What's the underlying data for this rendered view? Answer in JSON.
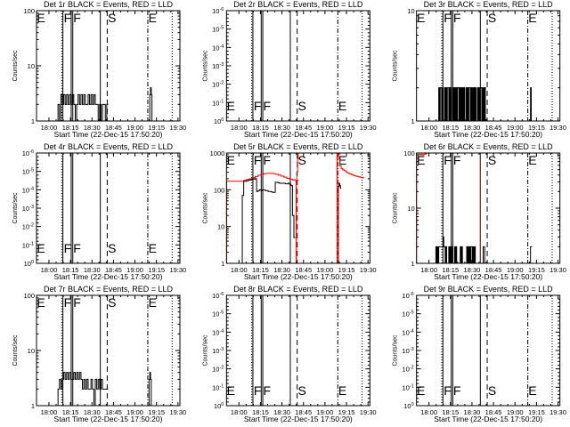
{
  "chart_data": {
    "type": "line",
    "layout": "3x3 grid",
    "x_axis": {
      "label": "Start Time (22-Dec-15 17:50:20)",
      "unit": "minutes since 17:50:20",
      "range": [
        1,
        101
      ],
      "ticks": [
        {
          "t": 9.67,
          "label": "18:00"
        },
        {
          "t": 24.67,
          "label": "18:15"
        },
        {
          "t": 39.67,
          "label": "18:30"
        },
        {
          "t": 54.67,
          "label": "18:45"
        },
        {
          "t": 69.67,
          "label": "19:00"
        },
        {
          "t": 84.67,
          "label": "19:15"
        },
        {
          "t": 99.67,
          "label": "19:30"
        }
      ]
    },
    "ylabel": "Counts/sec",
    "colors": {
      "events": "#000000",
      "lld": "#ff0000"
    },
    "event_lines": [
      {
        "t": 18.6,
        "style": "dotted"
      },
      {
        "t": 19.4,
        "style": "solid"
      },
      {
        "t": 25.2,
        "style": "solid"
      },
      {
        "t": 26.3,
        "style": "solid"
      },
      {
        "t": 45.5,
        "style": "solid"
      },
      {
        "t": 50.3,
        "style": "dashed"
      },
      {
        "t": 78.6,
        "style": "dashdot"
      },
      {
        "t": 95.6,
        "style": "dotted"
      }
    ],
    "event_letters": [
      {
        "t": 1.2,
        "label": "E"
      },
      {
        "t": 20.0,
        "label": "F"
      },
      {
        "t": 26.6,
        "label": "F"
      },
      {
        "t": 50.8,
        "label": "S"
      },
      {
        "t": 79.0,
        "label": "E"
      }
    ],
    "panels": [
      {
        "title": "Det 1r BLACK = Events, RED = LLD",
        "yscale": "log",
        "ylim": [
          1,
          100
        ],
        "yticks": [
          "1",
          "10",
          "100"
        ],
        "letters_at": "top",
        "events": [
          {
            "t0": 15,
            "dt": 1,
            "v": [
              1,
              2,
              1,
              3,
              2,
              3,
              2,
              3,
              2,
              3,
              2,
              3,
              2,
              1,
              2,
              3,
              2,
              3,
              2,
              3,
              2,
              2,
              3,
              2,
              3,
              2,
              3,
              2,
              2,
              1,
              2,
              1,
              2,
              2,
              1,
              2
            ]
          },
          {
            "t0": 79.5,
            "dt": 0.5,
            "v": [
              1,
              3,
              4,
              3,
              1
            ]
          }
        ],
        "lld": []
      },
      {
        "title": "Det 2r BLACK = Events, RED = LLD",
        "yscale": "degenerate",
        "yticks": [
          "10^0",
          "10^-1",
          "10^-2",
          "10^-3",
          "10^-4",
          "10^-5",
          "10^-6"
        ],
        "letters_at": "bottom",
        "events": [],
        "lld": []
      },
      {
        "title": "Det 3r BLACK = Events, RED = LLD",
        "yscale": "log",
        "ylim": [
          1,
          10
        ],
        "yticks": [
          "1",
          "10"
        ],
        "letters_at": "top",
        "events": [
          {
            "t0": 16.5,
            "dt": 0.5,
            "v": [
              2,
              1,
              2,
              2,
              1,
              2,
              1,
              1,
              2,
              1,
              2,
              1,
              2,
              2,
              1,
              2,
              1,
              2,
              1,
              1,
              2,
              1,
              2,
              1,
              2,
              1,
              2,
              2,
              1,
              2,
              1,
              2,
              1,
              2,
              1,
              2,
              1,
              1,
              2,
              1,
              2,
              1,
              2,
              2,
              1,
              2,
              1,
              2,
              1,
              2,
              1,
              2,
              1,
              1,
              2,
              1,
              2,
              1,
              2,
              2,
              1,
              2,
              1,
              2,
              1,
              2
            ]
          },
          {
            "t0": 80,
            "dt": 0.5,
            "v": [
              1,
              2,
              1
            ]
          }
        ],
        "lld": []
      },
      {
        "title": "Det 4r BLACK = Events, RED = LLD",
        "yscale": "degenerate",
        "yticks": [
          "10^0",
          "10^-1",
          "10^-2",
          "10^-3",
          "10^-4",
          "10^-5",
          "10^-6"
        ],
        "letters_at": "bottom",
        "events": [],
        "lld": []
      },
      {
        "title": "Det 5r BLACK = Events, RED = LLD",
        "yscale": "log",
        "ylim": [
          1,
          1000
        ],
        "yticks": [
          "1",
          "10",
          "100",
          "1000"
        ],
        "letters_at": "top",
        "events": [
          {
            "t0": 12,
            "dt": 1,
            "v": [
              70,
              170,
              170,
              175,
              180,
              185,
              190,
              200,
              195,
              200,
              90,
              95,
              100,
              95,
              100,
              100,
              95,
              95,
              90,
              90,
              88,
              85,
              85,
              160,
              160,
              155,
              150,
              150,
              150,
              150,
              145,
              145,
              150,
              140,
              130,
              20,
              5
            ]
          },
          {
            "t0": 79,
            "dt": 0.5,
            "v": [
              120,
              150,
              130,
              110
            ]
          }
        ],
        "lld": [
          {
            "t0": 1,
            "dt": 2,
            "v": [
              170,
              170,
              170,
              170,
              170,
              172,
              180,
              190,
              200,
              215,
              230,
              250,
              265,
              275,
              280,
              280,
              275,
              265,
              250,
              235,
              220,
              205,
              195,
              185,
              180
            ]
          },
          {
            "t0": 49.5,
            "dt": 0.5,
            "v": [
              180,
              300,
              700,
              1500
            ]
          },
          {
            "t0": 78,
            "dt": 1,
            "v": [
              1500,
              700,
              450,
              380,
              350,
              330,
              310,
              290,
              280,
              270,
              260,
              250,
              240,
              235,
              230,
              225,
              220,
              215,
              210
            ]
          }
        ]
      },
      {
        "title": "Det 6r BLACK = Events, RED = LLD",
        "yscale": "log",
        "ylim": [
          1,
          100
        ],
        "yticks": [
          "1",
          "10",
          "100"
        ],
        "letters_at": "top",
        "events": [
          {
            "t0": 14,
            "dt": 0.5,
            "v": [
              1,
              2,
              1,
              2,
              1,
              2,
              2,
              2,
              2,
              2,
              2,
              3,
              2,
              2,
              1,
              2,
              1,
              1,
              1,
              2,
              1,
              2,
              1,
              2,
              1,
              1,
              1,
              2,
              1,
              2,
              1,
              1,
              1,
              1,
              1,
              2,
              1,
              2,
              1,
              1,
              1,
              1,
              1,
              1,
              2,
              1,
              2,
              1,
              2,
              1,
              2,
              2,
              1,
              2,
              1,
              2,
              1,
              1,
              1,
              1,
              1,
              1,
              1,
              1,
              1,
              1,
              1,
              2,
              2,
              1,
              1
            ]
          },
          {
            "t0": 80.5,
            "dt": 0.5,
            "v": [
              2,
              2
            ]
          }
        ],
        "lld": [
          {
            "t0": 1,
            "dt": 1,
            "v": [
              95,
              95,
              93,
              95,
              92,
              95,
              97,
              100,
              100,
              105
            ]
          },
          {
            "t0": 45.5,
            "dt": 0.5,
            "v": [
              100,
              105,
              100
            ]
          }
        ]
      },
      {
        "title": "Det 7r BLACK = Events, RED = LLD",
        "yscale": "log",
        "ylim": [
          1,
          100
        ],
        "yticks": [
          "1",
          "10",
          "100"
        ],
        "letters_at": "top",
        "events": [
          {
            "t0": 15,
            "dt": 1,
            "v": [
              1,
              2,
              3,
              2,
              3,
              4,
              3,
              4,
              3,
              4,
              3,
              3,
              4,
              3,
              4,
              3,
              4,
              3,
              2,
              3,
              2,
              3,
              2,
              2,
              3,
              2,
              1,
              3,
              2,
              3,
              2,
              3,
              2,
              2,
              2,
              2
            ]
          },
          {
            "t0": 79.5,
            "dt": 0.5,
            "v": [
              3,
              4,
              3,
              1
            ]
          }
        ],
        "lld": []
      },
      {
        "title": "Det 8r BLACK = Events, RED = LLD",
        "yscale": "degenerate",
        "yticks": [
          "10^0",
          "10^-1",
          "10^-2",
          "10^-3",
          "10^-4",
          "10^-5",
          "10^-6"
        ],
        "letters_at": "bottom",
        "events": [],
        "lld": []
      },
      {
        "title": "Det 9r BLACK = Events, RED = LLD",
        "yscale": "degenerate",
        "yticks": [
          "10^0",
          "10^-1",
          "10^-2",
          "10^-3",
          "10^-4",
          "10^-5",
          "10^-6"
        ],
        "letters_at": "bottom",
        "events": [],
        "lld": []
      }
    ]
  }
}
